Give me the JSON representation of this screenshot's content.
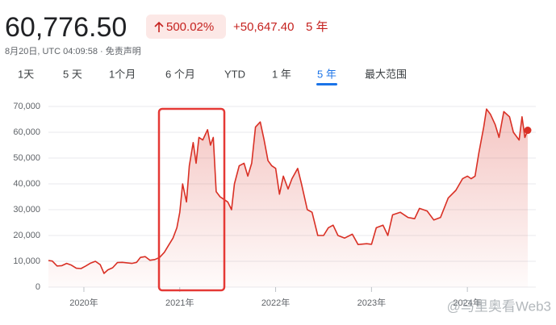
{
  "header": {
    "price": "60,776.50",
    "change_percent": "500.02%",
    "change": "+50,647.40",
    "period": "5 年",
    "timestamp": "8月20日, UTC 04:09:58 · 免责声明"
  },
  "tabs": [
    "1天",
    "5 天",
    "1个月",
    "6 个月",
    "YTD",
    "1 年",
    "5 年",
    "最大范围"
  ],
  "watermark": "@马里奥看Web3",
  "chart_data": {
    "type": "area",
    "color": "#d93025",
    "grid": true,
    "x": [
      2019.63,
      2019.67,
      2019.72,
      2019.77,
      2019.82,
      2019.87,
      2019.92,
      2019.97,
      2020.02,
      2020.07,
      2020.12,
      2020.17,
      2020.21,
      2020.25,
      2020.3,
      2020.35,
      2020.4,
      2020.45,
      2020.5,
      2020.55,
      2020.59,
      2020.64,
      2020.69,
      2020.74,
      2020.79,
      2020.84,
      2020.88,
      2020.93,
      2020.97,
      2021.0,
      2021.03,
      2021.07,
      2021.1,
      2021.14,
      2021.17,
      2021.2,
      2021.24,
      2021.29,
      2021.32,
      2021.35,
      2021.38,
      2021.42,
      2021.46,
      2021.5,
      2021.54,
      2021.57,
      2021.62,
      2021.67,
      2021.71,
      2021.75,
      2021.79,
      2021.84,
      2021.88,
      2021.92,
      2021.96,
      2022.0,
      2022.04,
      2022.08,
      2022.13,
      2022.17,
      2022.23,
      2022.27,
      2022.33,
      2022.38,
      2022.44,
      2022.5,
      2022.55,
      2022.6,
      2022.65,
      2022.72,
      2022.8,
      2022.86,
      2022.95,
      2023.0,
      2023.05,
      2023.12,
      2023.17,
      2023.22,
      2023.3,
      2023.38,
      2023.45,
      2023.5,
      2023.58,
      2023.65,
      2023.72,
      2023.8,
      2023.88,
      2023.95,
      2024.0,
      2024.04,
      2024.08,
      2024.12,
      2024.17,
      2024.2,
      2024.24,
      2024.29,
      2024.33,
      2024.38,
      2024.44,
      2024.48,
      2024.54,
      2024.57,
      2024.6,
      2024.63
    ],
    "values": [
      10300,
      10100,
      8200,
      8300,
      9200,
      8500,
      7300,
      7200,
      8200,
      9300,
      10000,
      8700,
      5300,
      6700,
      7500,
      9500,
      9600,
      9400,
      9200,
      9600,
      11500,
      11800,
      10400,
      10700,
      11500,
      13500,
      16000,
      19000,
      23000,
      29000,
      40000,
      33000,
      47000,
      56000,
      48000,
      58000,
      57000,
      61000,
      55000,
      58000,
      37000,
      35000,
      34000,
      33000,
      30000,
      40000,
      47000,
      48000,
      43000,
      48000,
      62000,
      64000,
      57000,
      49000,
      47000,
      46000,
      36000,
      43000,
      38000,
      42000,
      46000,
      40000,
      30000,
      29000,
      20000,
      20000,
      23000,
      24000,
      20000,
      19000,
      20500,
      16500,
      16800,
      16600,
      23000,
      24000,
      20000,
      28000,
      29000,
      27000,
      26500,
      30500,
      29500,
      26000,
      27000,
      34500,
      37500,
      42000,
      43000,
      42000,
      43000,
      52000,
      62000,
      69000,
      67000,
      63000,
      58000,
      68000,
      66000,
      60000,
      57000,
      66000,
      58000,
      60776.5
    ],
    "xlim": [
      2019.63,
      2024.63
    ],
    "xticks": [
      {
        "value": 2020,
        "label": "2020年"
      },
      {
        "value": 2021,
        "label": "2021年"
      },
      {
        "value": 2022,
        "label": "2022年"
      },
      {
        "value": 2023,
        "label": "2023年"
      },
      {
        "value": 2024,
        "label": "2024年"
      }
    ],
    "ylim": [
      0,
      70000
    ],
    "yticks": [
      0,
      {
        "value": 10000,
        "label": "10,000"
      },
      {
        "value": 20000,
        "label": "20,000"
      },
      {
        "value": 30000,
        "label": "30,000"
      },
      {
        "value": 40000,
        "label": "40,000"
      },
      {
        "value": 50000,
        "label": "50,000"
      },
      {
        "value": 60000,
        "label": "60,000"
      },
      {
        "value": 70000,
        "label": "70,000"
      }
    ]
  }
}
